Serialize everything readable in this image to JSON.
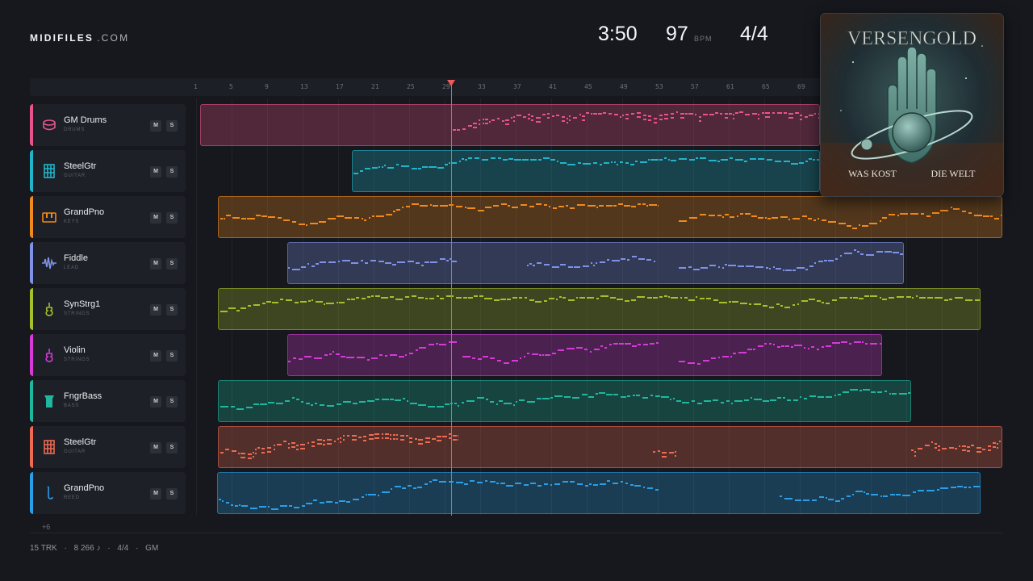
{
  "header": {
    "brand_bold": "MIDIFILES",
    "brand_domain": ".COM",
    "duration": "3:50",
    "bpm": "97",
    "bpm_unit": "BPM",
    "time_signature": "4/4"
  },
  "ruler": {
    "bars": [
      "1",
      "5",
      "9",
      "13",
      "17",
      "21",
      "25",
      "29",
      "33",
      "37",
      "41",
      "45",
      "49",
      "53",
      "57",
      "61",
      "65",
      "69"
    ]
  },
  "playhead_bar": 29,
  "tracks": [
    {
      "name": "GM Drums",
      "category": "DRUMS",
      "color": "#e8548a",
      "icon": "drum-icon",
      "mute": "M",
      "solo": "S"
    },
    {
      "name": "SteelGtr",
      "category": "GUITAR",
      "color": "#22b5c9",
      "icon": "guitar-fretboard-icon",
      "mute": "M",
      "solo": "S"
    },
    {
      "name": "GrandPno",
      "category": "KEYS",
      "color": "#f08a1c",
      "icon": "piano-keys-icon",
      "mute": "M",
      "solo": "S"
    },
    {
      "name": "Fiddle",
      "category": "LEAD",
      "color": "#7f92e8",
      "icon": "waveform-icon",
      "mute": "M",
      "solo": "S"
    },
    {
      "name": "SynStrg1",
      "category": "STRINGS",
      "color": "#a4c02a",
      "icon": "violin-icon",
      "mute": "M",
      "solo": "S"
    },
    {
      "name": "Violin",
      "category": "STRINGS",
      "color": "#d63ad8",
      "icon": "violin-icon",
      "mute": "M",
      "solo": "S"
    },
    {
      "name": "FngrBass",
      "category": "BASS",
      "color": "#1fb79e",
      "icon": "bass-amp-icon",
      "mute": "M",
      "solo": "S"
    },
    {
      "name": "SteelGtr",
      "category": "GUITAR",
      "color": "#ef6a52",
      "icon": "guitar-fretboard-icon",
      "mute": "M",
      "solo": "S"
    },
    {
      "name": "GrandPno",
      "category": "REED",
      "color": "#2a9ee6",
      "icon": "saxophone-icon",
      "mute": "M",
      "solo": "S"
    }
  ],
  "more_tracks": "+6",
  "footer": {
    "tracks": "15 TRK",
    "notes": "8 266 ♪",
    "signature": "4/4",
    "standard": "GM",
    "separator": "·"
  },
  "album": {
    "band": "VERSENGOLD",
    "title_left": "WAS KOST",
    "title_right": "DIE WELT"
  }
}
